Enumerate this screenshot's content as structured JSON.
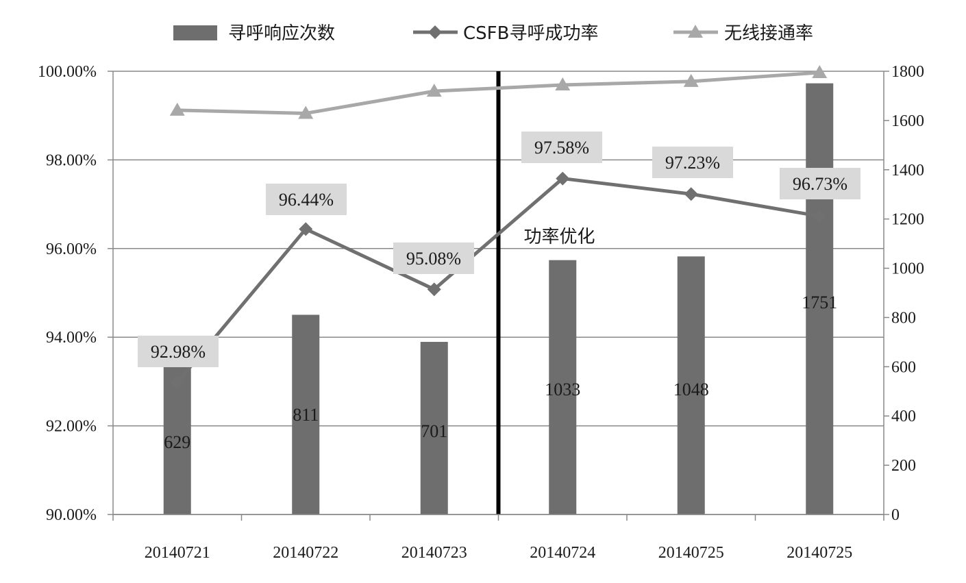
{
  "chart_data": {
    "type": "bar",
    "categories": [
      "20140721",
      "20140722",
      "20140723",
      "20140724",
      "20140725",
      "20140725"
    ],
    "series": [
      {
        "name": "寻呼响应次数",
        "kind": "bar",
        "axis": "right",
        "values": [
          629,
          811,
          701,
          1033,
          1048,
          1751
        ],
        "labels": [
          "629",
          "811",
          "701",
          "1033",
          "1048",
          "1751"
        ],
        "color": "#6e6e6e"
      },
      {
        "name": "CSFB寻呼成功率",
        "kind": "line",
        "marker": "diamond",
        "axis": "left",
        "values": [
          92.98,
          96.44,
          95.08,
          97.58,
          97.23,
          96.73
        ],
        "labels": [
          "92.98%",
          "96.44%",
          "95.08%",
          "97.58%",
          "97.23%",
          "96.73%"
        ],
        "color": "#707070"
      },
      {
        "name": "无线接通率",
        "kind": "line",
        "marker": "triangle",
        "axis": "left",
        "values": [
          99.12,
          99.05,
          99.55,
          99.69,
          99.77,
          99.97
        ],
        "color": "#a8a8a8"
      }
    ],
    "y_left": {
      "ylim": [
        90,
        100
      ],
      "ticks": [
        90,
        92,
        94,
        96,
        98,
        100
      ],
      "tick_labels": [
        "90.00%",
        "92.00%",
        "94.00%",
        "96.00%",
        "98.00%",
        "100.00%"
      ]
    },
    "y_right": {
      "ylim": [
        0,
        1800
      ],
      "ticks": [
        0,
        200,
        400,
        600,
        800,
        1000,
        1200,
        1400,
        1600,
        1800
      ],
      "tick_labels": [
        "0",
        "200",
        "400",
        "600",
        "800",
        "1000",
        "1200",
        "1400",
        "1600",
        "1800"
      ]
    },
    "grid": true,
    "legend": "top",
    "annotation": {
      "text": "功率优化",
      "divider_after_category_index": 2
    },
    "colors": {
      "gridline": "#888888",
      "label_box": "#d9d9d9",
      "divider": "#000000"
    }
  }
}
